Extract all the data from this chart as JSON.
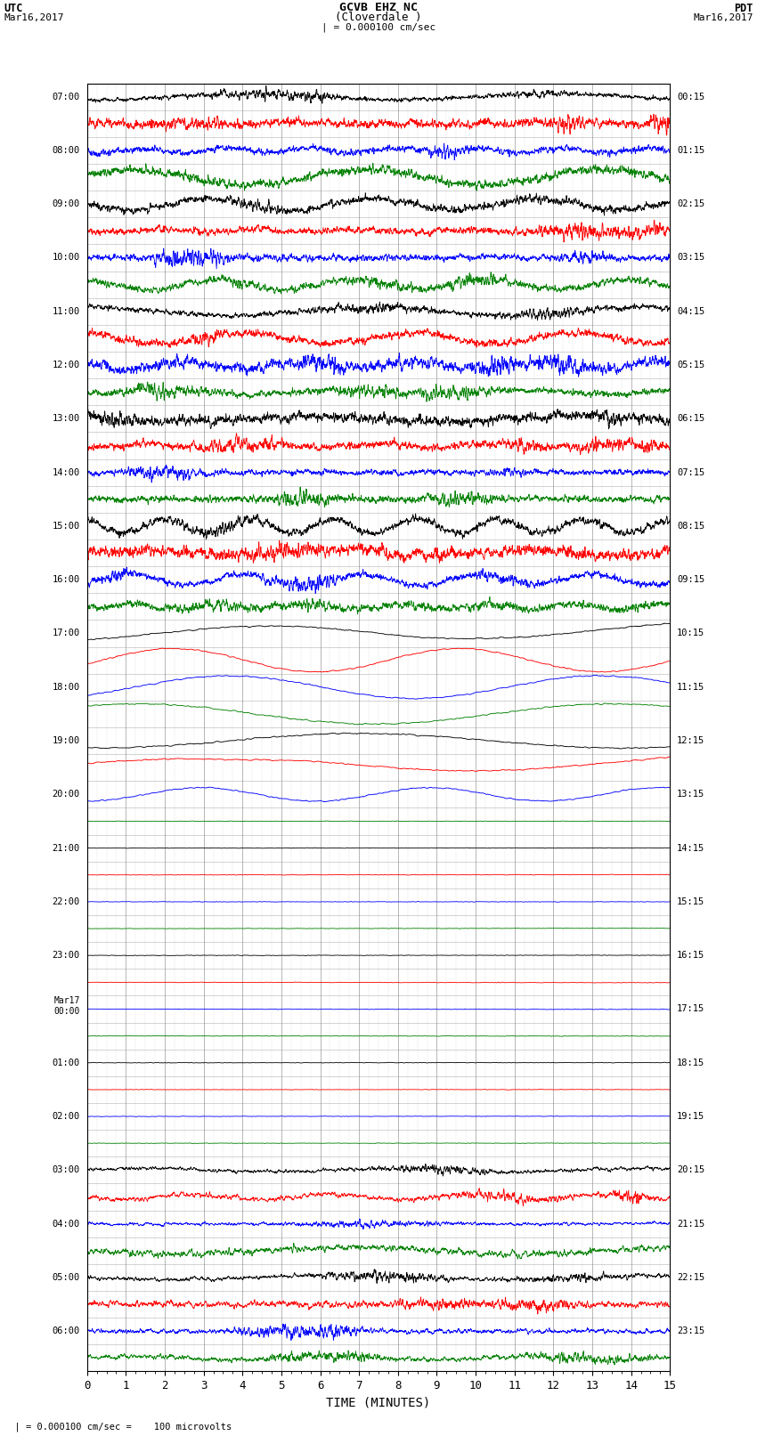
{
  "title_line1": "GCVB EHZ NC",
  "title_line2": "(Cloverdale )",
  "scale_label": "| = 0.000100 cm/sec",
  "xlabel": "TIME (MINUTES)",
  "footer": "  | = 0.000100 cm/sec =    100 microvolts",
  "x_min": 0,
  "x_max": 15,
  "x_ticks": [
    0,
    1,
    2,
    3,
    4,
    5,
    6,
    7,
    8,
    9,
    10,
    11,
    12,
    13,
    14,
    15
  ],
  "colors": [
    "black",
    "red",
    "blue",
    "green"
  ],
  "bg_color": "white",
  "num_traces": 48,
  "left_times_utc": [
    "07:00",
    "",
    "08:00",
    "",
    "09:00",
    "",
    "10:00",
    "",
    "11:00",
    "",
    "12:00",
    "",
    "13:00",
    "",
    "14:00",
    "",
    "15:00",
    "",
    "16:00",
    "",
    "17:00",
    "",
    "18:00",
    "",
    "19:00",
    "",
    "20:00",
    "",
    "21:00",
    "",
    "22:00",
    "",
    "23:00",
    "",
    "Mar17",
    "",
    "01:00",
    "",
    "02:00",
    "",
    "03:00",
    "",
    "04:00",
    "",
    "05:00",
    "",
    "06:00",
    ""
  ],
  "left_times_utc_hour": [
    "07:00",
    "",
    "08:00",
    "",
    "09:00",
    "",
    "10:00",
    "",
    "11:00",
    "",
    "12:00",
    "",
    "13:00",
    "",
    "14:00",
    "",
    "15:00",
    "",
    "16:00",
    "",
    "17:00",
    "",
    "18:00",
    "",
    "19:00",
    "",
    "20:00",
    "",
    "21:00",
    "",
    "22:00",
    "",
    "23:00",
    "",
    "00:00",
    "",
    "01:00",
    "",
    "02:00",
    "",
    "03:00",
    "",
    "04:00",
    "",
    "05:00",
    "",
    "06:00",
    ""
  ],
  "right_times_pdt": [
    "00:15",
    "",
    "01:15",
    "",
    "02:15",
    "",
    "03:15",
    "",
    "04:15",
    "",
    "05:15",
    "",
    "06:15",
    "",
    "07:15",
    "",
    "08:15",
    "",
    "09:15",
    "",
    "10:15",
    "",
    "11:15",
    "",
    "12:15",
    "",
    "13:15",
    "",
    "14:15",
    "",
    "15:15",
    "",
    "16:15",
    "",
    "17:15",
    "",
    "18:15",
    "",
    "19:15",
    "",
    "20:15",
    "",
    "21:15",
    "",
    "22:15",
    "",
    "23:15",
    ""
  ],
  "figsize": [
    8.5,
    16.13
  ],
  "dpi": 100
}
